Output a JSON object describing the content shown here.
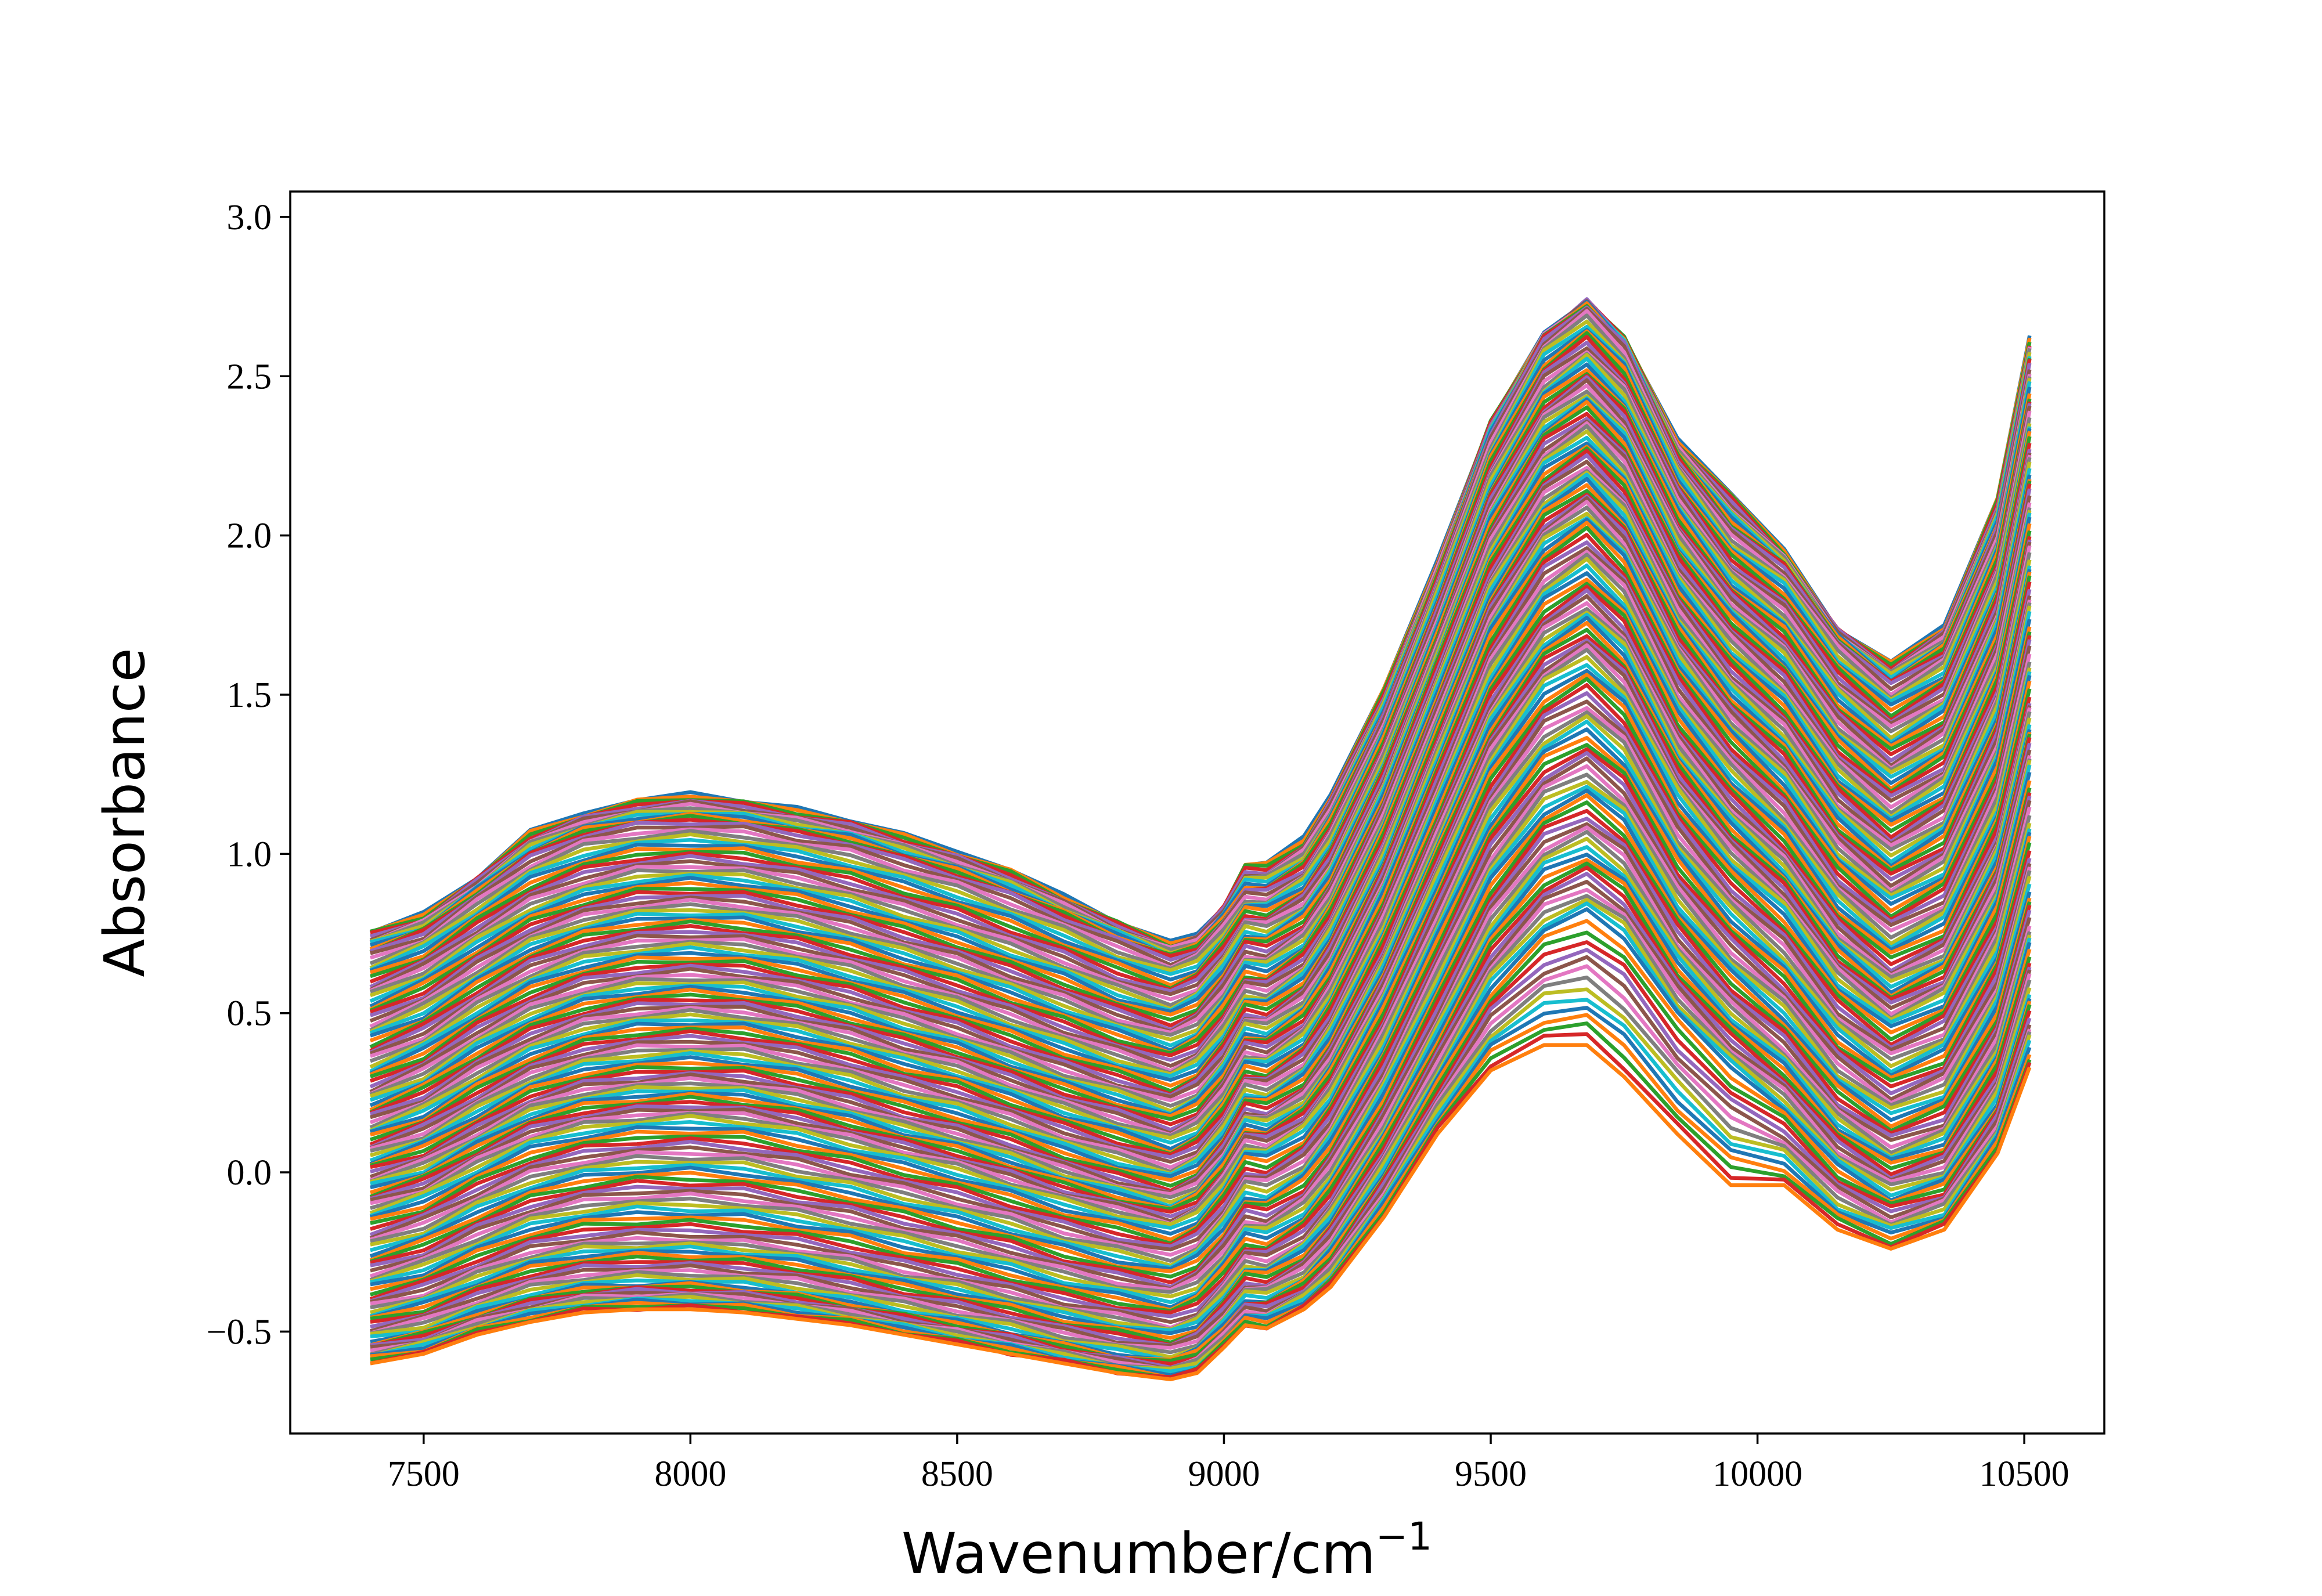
{
  "chart_data": {
    "type": "line",
    "xlabel": "Wavenumber/cm",
    "xlabel_superscript": "−1",
    "ylabel": "Absorbance",
    "xlim": [
      7250,
      10650
    ],
    "ylim": [
      -0.82,
      3.08
    ],
    "x_ticks": [
      7500,
      8000,
      8500,
      9000,
      9500,
      10000,
      10500
    ],
    "x_tick_labels": [
      "7500",
      "8000",
      "8500",
      "9000",
      "9500",
      "10000",
      "10500"
    ],
    "y_ticks": [
      -0.5,
      0.0,
      0.5,
      1.0,
      1.5,
      2.0,
      2.5,
      3.0
    ],
    "y_tick_labels": [
      "−0.5",
      "0.0",
      "0.5",
      "1.0",
      "1.5",
      "2.0",
      "2.5",
      "3.0"
    ],
    "grid": false,
    "legend": "none",
    "x": [
      7400,
      7500,
      7600,
      7700,
      7800,
      7900,
      8000,
      8100,
      8200,
      8300,
      8400,
      8500,
      8600,
      8700,
      8800,
      8900,
      8950,
      9000,
      9040,
      9080,
      9150,
      9200,
      9300,
      9400,
      9500,
      9600,
      9680,
      9750,
      9850,
      9950,
      10050,
      10150,
      10250,
      10350,
      10450,
      10510
    ],
    "series": [
      {
        "values": [
          0.76,
          0.81,
          0.93,
          1.07,
          1.13,
          1.17,
          1.19,
          1.17,
          1.14,
          1.11,
          1.06,
          1.01,
          0.95,
          0.87,
          0.79,
          0.72,
          0.75,
          0.84,
          0.97,
          0.97,
          1.05,
          1.19,
          1.52,
          1.92,
          2.36,
          2.63,
          2.74,
          2.62,
          2.3,
          2.14,
          1.95,
          1.71,
          1.6,
          1.72,
          2.12,
          2.62
        ]
      },
      {
        "values": [
          0.69,
          0.75,
          0.87,
          0.99,
          1.06,
          1.09,
          1.1,
          1.09,
          1.06,
          1.03,
          0.98,
          0.93,
          0.87,
          0.8,
          0.73,
          0.67,
          0.7,
          0.79,
          0.88,
          0.88,
          0.95,
          1.08,
          1.43,
          1.86,
          2.31,
          2.62,
          2.72,
          2.6,
          2.24,
          2.02,
          1.9,
          1.67,
          1.53,
          1.63,
          2.02,
          2.54
        ]
      },
      {
        "values": [
          0.55,
          0.62,
          0.73,
          0.83,
          0.89,
          0.93,
          0.94,
          0.93,
          0.9,
          0.86,
          0.81,
          0.76,
          0.7,
          0.64,
          0.57,
          0.52,
          0.56,
          0.66,
          0.77,
          0.76,
          0.83,
          0.95,
          1.3,
          1.72,
          2.17,
          2.46,
          2.56,
          2.44,
          2.1,
          1.87,
          1.74,
          1.51,
          1.37,
          1.47,
          1.86,
          2.36
        ]
      },
      {
        "values": [
          0.4,
          0.47,
          0.58,
          0.68,
          0.74,
          0.77,
          0.78,
          0.77,
          0.74,
          0.7,
          0.65,
          0.6,
          0.54,
          0.48,
          0.42,
          0.37,
          0.41,
          0.51,
          0.62,
          0.61,
          0.69,
          0.82,
          1.17,
          1.6,
          2.03,
          2.31,
          2.4,
          2.28,
          1.94,
          1.73,
          1.58,
          1.34,
          1.2,
          1.3,
          1.68,
          2.17
        ]
      },
      {
        "values": [
          0.25,
          0.32,
          0.43,
          0.52,
          0.58,
          0.61,
          0.62,
          0.61,
          0.58,
          0.54,
          0.49,
          0.44,
          0.38,
          0.32,
          0.27,
          0.22,
          0.26,
          0.36,
          0.48,
          0.47,
          0.55,
          0.68,
          1.02,
          1.44,
          1.86,
          2.13,
          2.22,
          2.1,
          1.77,
          1.55,
          1.4,
          1.16,
          1.02,
          1.12,
          1.49,
          1.96
        ]
      },
      {
        "values": [
          0.12,
          0.18,
          0.28,
          0.37,
          0.43,
          0.46,
          0.47,
          0.46,
          0.43,
          0.39,
          0.34,
          0.3,
          0.24,
          0.18,
          0.13,
          0.08,
          0.12,
          0.22,
          0.34,
          0.33,
          0.41,
          0.54,
          0.88,
          1.29,
          1.7,
          1.96,
          2.05,
          1.93,
          1.6,
          1.38,
          1.22,
          0.98,
          0.84,
          0.93,
          1.29,
          1.74
        ]
      },
      {
        "values": [
          0.0,
          0.05,
          0.14,
          0.23,
          0.28,
          0.3,
          0.31,
          0.3,
          0.27,
          0.23,
          0.18,
          0.14,
          0.09,
          0.03,
          -0.02,
          -0.06,
          -0.02,
          0.08,
          0.2,
          0.19,
          0.26,
          0.38,
          0.7,
          1.09,
          1.48,
          1.73,
          1.82,
          1.71,
          1.38,
          1.17,
          1.01,
          0.78,
          0.64,
          0.72,
          1.06,
          1.48
        ]
      },
      {
        "values": [
          -0.12,
          -0.07,
          0.02,
          0.1,
          0.14,
          0.16,
          0.17,
          0.16,
          0.13,
          0.09,
          0.05,
          0.01,
          -0.04,
          -0.09,
          -0.13,
          -0.17,
          -0.13,
          -0.03,
          0.08,
          0.07,
          0.14,
          0.25,
          0.56,
          0.93,
          1.3,
          1.54,
          1.62,
          1.51,
          1.2,
          0.99,
          0.84,
          0.61,
          0.48,
          0.56,
          0.88,
          1.29
        ]
      },
      {
        "values": [
          -0.28,
          -0.23,
          -0.15,
          -0.08,
          -0.04,
          -0.02,
          -0.02,
          -0.03,
          -0.06,
          -0.09,
          -0.13,
          -0.17,
          -0.21,
          -0.26,
          -0.3,
          -0.33,
          -0.29,
          -0.2,
          -0.1,
          -0.11,
          -0.04,
          0.07,
          0.36,
          0.71,
          1.06,
          1.28,
          1.35,
          1.25,
          0.96,
          0.76,
          0.61,
          0.4,
          0.28,
          0.35,
          0.65,
          1.03
        ]
      },
      {
        "values": [
          -0.42,
          -0.38,
          -0.31,
          -0.25,
          -0.22,
          -0.21,
          -0.21,
          -0.22,
          -0.24,
          -0.27,
          -0.31,
          -0.34,
          -0.38,
          -0.42,
          -0.45,
          -0.48,
          -0.45,
          -0.36,
          -0.27,
          -0.28,
          -0.21,
          -0.11,
          0.16,
          0.48,
          0.81,
          1.02,
          1.08,
          0.99,
          0.72,
          0.53,
          0.39,
          0.19,
          0.08,
          0.14,
          0.42,
          0.78
        ]
      },
      {
        "values": [
          -0.53,
          -0.5,
          -0.44,
          -0.39,
          -0.36,
          -0.35,
          -0.35,
          -0.36,
          -0.38,
          -0.41,
          -0.44,
          -0.47,
          -0.5,
          -0.54,
          -0.57,
          -0.59,
          -0.56,
          -0.48,
          -0.4,
          -0.4,
          -0.34,
          -0.25,
          0.0,
          0.29,
          0.58,
          0.76,
          0.82,
          0.74,
          0.5,
          0.33,
          0.2,
          0.02,
          -0.08,
          -0.03,
          0.22,
          0.55
        ]
      },
      {
        "values": [
          -0.6,
          -0.57,
          -0.51,
          -0.47,
          -0.44,
          -0.43,
          -0.43,
          -0.44,
          -0.46,
          -0.48,
          -0.51,
          -0.54,
          -0.57,
          -0.6,
          -0.63,
          -0.65,
          -0.63,
          -0.55,
          -0.48,
          -0.49,
          -0.43,
          -0.36,
          -0.14,
          0.12,
          0.32,
          0.4,
          0.4,
          0.3,
          0.12,
          -0.04,
          -0.04,
          -0.18,
          -0.24,
          -0.18,
          0.06,
          0.33
        ]
      }
    ]
  },
  "colors": [
    "#1f77b4",
    "#ff7f0e",
    "#2ca02c",
    "#d62728",
    "#9467bd",
    "#8c564b",
    "#e377c2",
    "#7f7f7f",
    "#bcbd22",
    "#17becf"
  ]
}
